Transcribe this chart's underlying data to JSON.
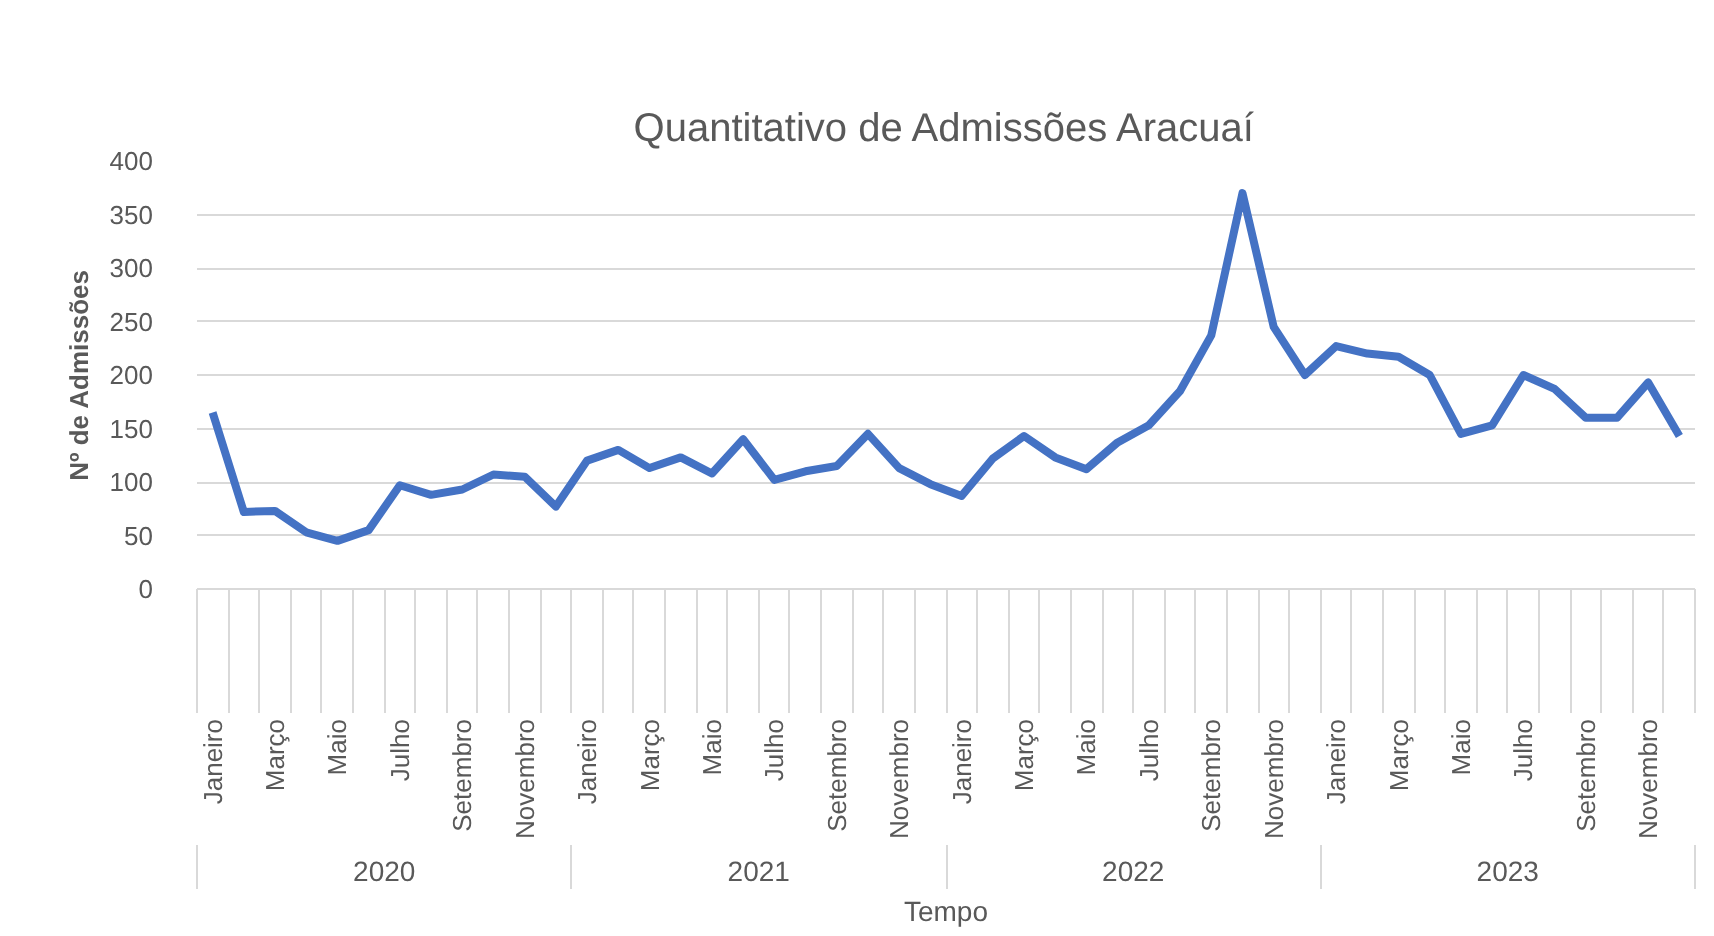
{
  "chart_data": {
    "type": "line",
    "title": "Quantitativo de Admissões Aracuaí",
    "xlabel": "Tempo",
    "ylabel": "Nº de Admissões",
    "categories": [
      "Janeiro",
      null,
      "Março",
      null,
      "Maio",
      null,
      "Julho",
      null,
      "Setembro",
      null,
      "Novembro",
      null,
      "Janeiro",
      null,
      "Março",
      null,
      "Maio",
      null,
      "Julho",
      null,
      "Setembro",
      null,
      "Novembro",
      null,
      "Janeiro",
      null,
      "Março",
      null,
      "Maio",
      null,
      "Julho",
      null,
      "Setembro",
      null,
      "Novembro",
      null,
      "Janeiro",
      null,
      "Março",
      null,
      "Maio",
      null,
      "Julho",
      null,
      "Setembro",
      null,
      "Novembro",
      null
    ],
    "series": [
      {
        "color": "#4472c4",
        "values": [
          165,
          72,
          73,
          53,
          45,
          55,
          97,
          88,
          93,
          107,
          105,
          77,
          120,
          130,
          113,
          123,
          108,
          140,
          102,
          110,
          115,
          145,
          113,
          98,
          87,
          122,
          143,
          123,
          112,
          137,
          153,
          185,
          237,
          370,
          245,
          200,
          227,
          220,
          217,
          200,
          145,
          153,
          200,
          187,
          160,
          160,
          193,
          143
        ]
      }
    ],
    "annotations": [
      "2020",
      "2021",
      "2022",
      "2023"
    ],
    "ylim": [
      0,
      400
    ],
    "yticks": [
      0,
      50,
      100,
      150,
      200,
      250,
      300,
      350,
      400
    ],
    "grid": "y",
    "marker": "none",
    "line_style": "solid"
  }
}
